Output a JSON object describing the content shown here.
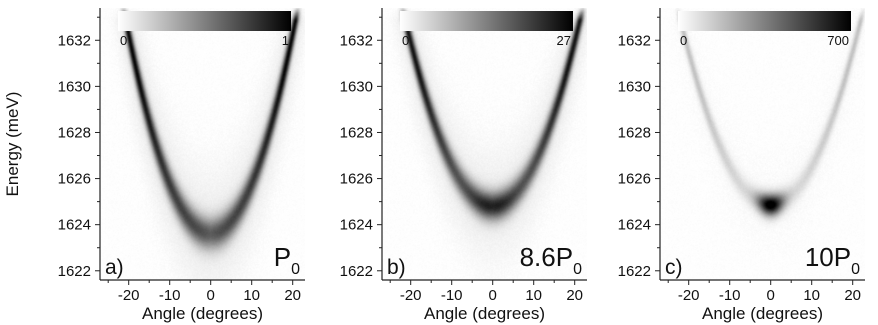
{
  "chart_data": [
    {
      "type": "heatmap",
      "panel_label": "a)",
      "power_label": {
        "main": "P",
        "sub": "0"
      },
      "xlabel": "Angle (degrees)",
      "ylabel": "Energy (meV)",
      "xlim": [
        -27,
        23
      ],
      "ylim": [
        1621.6,
        1633.4
      ],
      "xticks": [
        -20,
        -10,
        0,
        10,
        20
      ],
      "yticks": [
        1622,
        1624,
        1626,
        1628,
        1630,
        1632
      ],
      "colorbar": {
        "min": "0",
        "max": "1",
        "colors": [
          "#ffffff",
          "#000000"
        ]
      },
      "dispersion": {
        "e0": 1623.6,
        "curvature": 0.0215,
        "peak_angle": 0,
        "peak_width": 6
      },
      "branch_intensity": 0.9,
      "condensate_intensity": 0.25,
      "band_width_meV": 0.5
    },
    {
      "type": "heatmap",
      "panel_label": "b)",
      "power_label": {
        "main": "8.6P",
        "sub": "0"
      },
      "xlabel": "Angle (degrees)",
      "ylabel": "",
      "xlim": [
        -27,
        23
      ],
      "ylim": [
        1621.6,
        1633.4
      ],
      "xticks": [
        -20,
        -10,
        0,
        10,
        20
      ],
      "yticks": [
        1622,
        1624,
        1626,
        1628,
        1630,
        1632
      ],
      "colorbar": {
        "min": "0",
        "max": "27",
        "colors": [
          "#ffffff",
          "#000000"
        ]
      },
      "dispersion": {
        "e0": 1624.8,
        "curvature": 0.0177,
        "peak_angle": 0,
        "peak_width": 4
      },
      "branch_intensity": 0.85,
      "condensate_intensity": 0.5,
      "band_width_meV": 0.45
    },
    {
      "type": "heatmap",
      "panel_label": "c)",
      "power_label": {
        "main": "10P",
        "sub": "0"
      },
      "xlabel": "Angle (degrees)",
      "ylabel": "",
      "xlim": [
        -27,
        23
      ],
      "ylim": [
        1621.6,
        1633.4
      ],
      "xticks": [
        -20,
        -10,
        0,
        10,
        20
      ],
      "yticks": [
        1622,
        1624,
        1626,
        1628,
        1630,
        1632
      ],
      "colorbar": {
        "min": "0",
        "max": "700",
        "colors": [
          "#ffffff",
          "#000000"
        ]
      },
      "dispersion": {
        "e0": 1624.85,
        "curvature": 0.0165,
        "peak_angle": 0,
        "peak_width": 2.2
      },
      "branch_intensity": 0.22,
      "condensate_intensity": 1.0,
      "band_width_meV": 0.35
    }
  ]
}
